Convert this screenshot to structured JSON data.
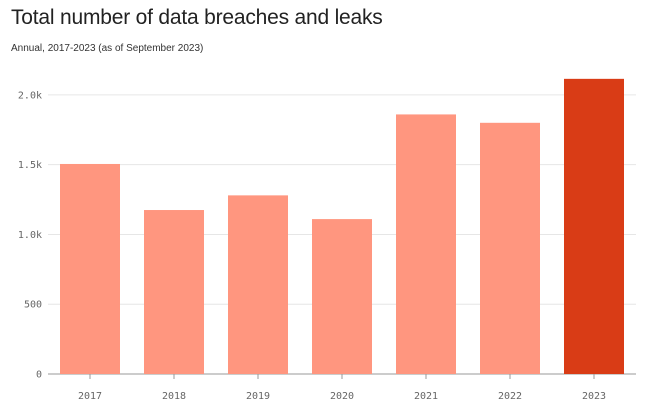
{
  "chart_data": {
    "type": "bar",
    "title": "Total number of data breaches and leaks",
    "subtitle": "Annual, 2017-2023 (as of September 2023)",
    "categories": [
      "2017",
      "2018",
      "2019",
      "2020",
      "2021",
      "2022",
      "2023"
    ],
    "values": [
      1505,
      1175,
      1280,
      1110,
      1860,
      1800,
      2115
    ],
    "highlight_index": 6,
    "ylim": [
      0,
      2250
    ],
    "yticks": [
      0,
      500,
      1000,
      1500,
      2000
    ],
    "ytick_labels": [
      "0",
      "500",
      "1.0k",
      "1.5k",
      "2.0k"
    ],
    "xlabel": "",
    "ylabel": "",
    "grid": true,
    "colors": {
      "bar": "#ff967f",
      "highlight": "#d93c16",
      "grid": "#e6e6e6",
      "baseline": "#999999"
    }
  }
}
